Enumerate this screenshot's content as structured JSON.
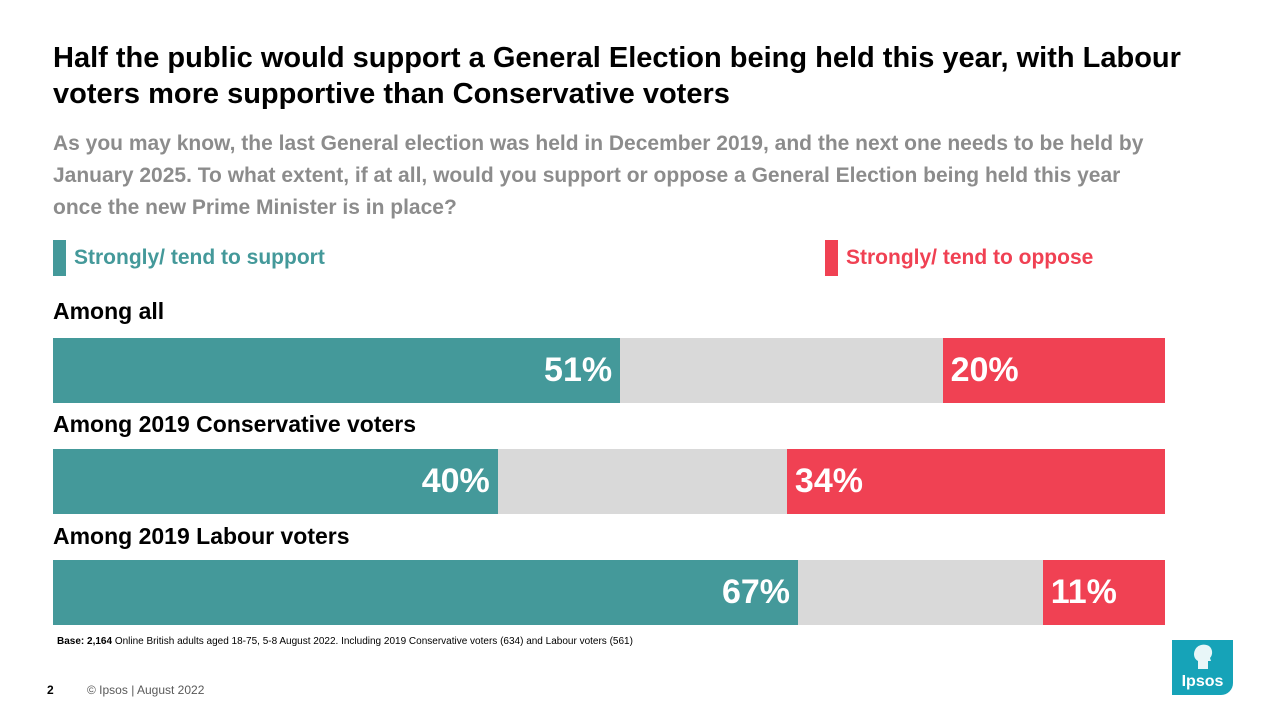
{
  "title": "Half the public would support a General Election being held this year, with Labour voters more supportive than Conservative voters",
  "subtitle": "As you may know, the last General election was held in December 2019, and the next one needs to be held by January 2025. To what extent, if at all, would you support or oppose a General Election being held this year once the new Prime Minister is in place?",
  "legend": {
    "support": {
      "label": "Strongly/ tend to support",
      "color": "#44999a"
    },
    "oppose": {
      "label": "Strongly/ tend to oppose",
      "color": "#f04153"
    }
  },
  "chart_data": {
    "type": "bar",
    "orientation": "horizontal-stacked",
    "categories": [
      "Among all",
      "Among 2019 Conservative voters",
      "Among 2019 Labour voters"
    ],
    "series": [
      {
        "name": "Strongly/ tend to support",
        "values": [
          51,
          40,
          67
        ],
        "labels": [
          "51%",
          "40%",
          "67%"
        ]
      },
      {
        "name": "Strongly/ tend to oppose",
        "values": [
          20,
          34,
          11
        ],
        "labels": [
          "20%",
          "34%",
          "11%"
        ]
      }
    ],
    "remainder_color": "#d9d9d9",
    "xlim": [
      0,
      100
    ]
  },
  "base_note": {
    "bold": "Base: 2,164",
    "text": " Online British adults aged 18-75, 5-8 August 2022. Including 2019 Conservative voters (634) and Labour voters (561)"
  },
  "footer": {
    "page_number": "2",
    "copyright": "© Ipsos | August 2022",
    "logo_text": "Ipsos"
  }
}
